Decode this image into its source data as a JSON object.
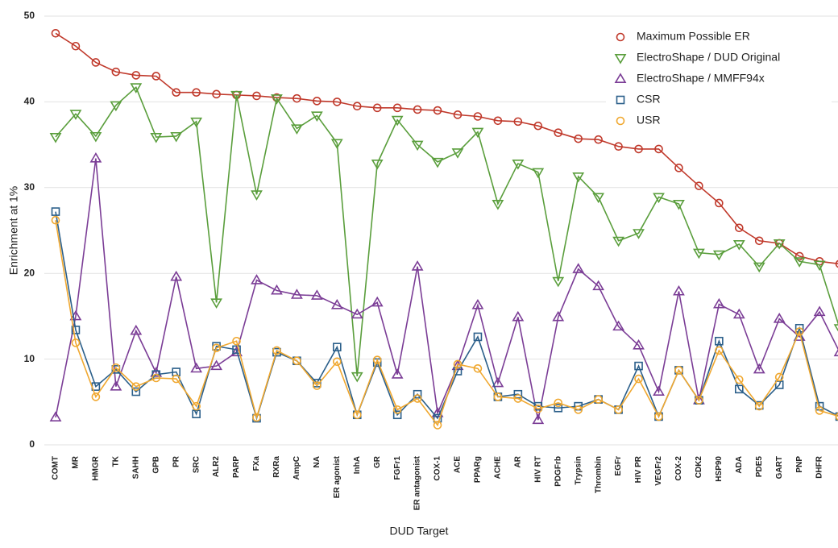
{
  "chart_data": {
    "type": "line",
    "xlabel": "DUD Target",
    "ylabel": "Enrichment at 1%",
    "categories": [
      "COMT",
      "MR",
      "HMGR",
      "TK",
      "SAHH",
      "GPB",
      "PR",
      "SRC",
      "ALR2",
      "PARP",
      "FXa",
      "RXRa",
      "AmpC",
      "NA",
      "ER agonist",
      "InhA",
      "GR",
      "FGFr1",
      "ER antagonist",
      "COX-1",
      "ACE",
      "PPARg",
      "ACHE",
      "AR",
      "HIV RT",
      "PDGFrb",
      "Trypsin",
      "Thrombin",
      "EGFr",
      "HIV PR",
      "VEGFr2",
      "COX-2",
      "CDK2",
      "HSP90",
      "ADA",
      "PDE5",
      "GART",
      "PNP",
      "DHFR",
      null
    ],
    "ylim": [
      0,
      50
    ],
    "yticks": [
      0,
      10,
      20,
      30,
      40,
      50
    ],
    "grid": true,
    "legend": "upper right",
    "series": [
      {
        "name": "Maximum Possible ER",
        "color": "#c0392b",
        "marker": "circle",
        "values": [
          48,
          46.5,
          44.6,
          43.5,
          43.1,
          43,
          41.1,
          41.1,
          40.9,
          40.8,
          40.7,
          40.5,
          40.4,
          40.1,
          40,
          39.5,
          39.3,
          39.3,
          39.1,
          39,
          38.5,
          38.3,
          37.8,
          37.7,
          37.2,
          36.4,
          35.7,
          35.6,
          34.8,
          34.5,
          34.5,
          32.3,
          30.2,
          28.2,
          25.3,
          23.8,
          23.5,
          22,
          21.4,
          21.1
        ]
      },
      {
        "name": "ElectroShape / DUD Original",
        "color": "#5a9e3c",
        "marker": "triangle-down",
        "values": [
          35.9,
          38.6,
          36,
          39.6,
          41.7,
          35.9,
          36,
          37.7,
          16.6,
          40.8,
          29.2,
          40.4,
          36.9,
          38.4,
          35.2,
          8,
          32.8,
          37.9,
          35,
          33,
          34.1,
          36.5,
          28.1,
          32.8,
          31.8,
          19.1,
          31.3,
          28.9,
          23.8,
          24.7,
          28.9,
          28.1,
          22.4,
          22.2,
          23.4,
          20.8,
          23.5,
          21.4,
          21,
          13.6
        ]
      },
      {
        "name": "ElectroShape / MMFF94x",
        "color": "#7b3d96",
        "marker": "triangle-up",
        "values": [
          3.2,
          15,
          33.4,
          6.8,
          13.3,
          8.4,
          19.6,
          8.9,
          9.2,
          10.8,
          19.2,
          18,
          17.5,
          17.4,
          16.3,
          15.2,
          16.6,
          8.2,
          20.8,
          3.7,
          9.2,
          16.3,
          7.2,
          14.9,
          2.9,
          14.9,
          20.5,
          18.5,
          13.8,
          11.6,
          6.2,
          17.9,
          5.2,
          16.4,
          15.2,
          8.8,
          14.7,
          12.6,
          15.5,
          10.8
        ]
      },
      {
        "name": "CSR",
        "color": "#2b5f8a",
        "marker": "square",
        "values": [
          27.2,
          13.4,
          6.8,
          8.8,
          6.2,
          8.2,
          8.5,
          3.6,
          11.5,
          11.1,
          3.1,
          10.8,
          9.8,
          7.2,
          11.4,
          3.5,
          9.6,
          3.5,
          5.9,
          3.1,
          8.6,
          12.6,
          5.6,
          5.9,
          4.5,
          4.3,
          4.5,
          5.3,
          4.1,
          9.2,
          3.3,
          8.7,
          5.2,
          12.1,
          6.5,
          4.6,
          7,
          13.6,
          4.5,
          3.3
        ]
      },
      {
        "name": "USR",
        "color": "#f0a830",
        "marker": "circle",
        "values": [
          26.2,
          11.9,
          5.6,
          9,
          6.8,
          7.8,
          7.7,
          4.5,
          11.3,
          12.1,
          3.2,
          11,
          9.8,
          6.9,
          9.7,
          3.5,
          9.9,
          4.1,
          5.4,
          2.3,
          9.4,
          8.9,
          5.6,
          5.4,
          4.2,
          4.9,
          4.1,
          5.3,
          4.1,
          7.7,
          3.3,
          8.7,
          5.2,
          11,
          7.6,
          4.5,
          7.9,
          13.2,
          4,
          3.3
        ]
      }
    ]
  }
}
